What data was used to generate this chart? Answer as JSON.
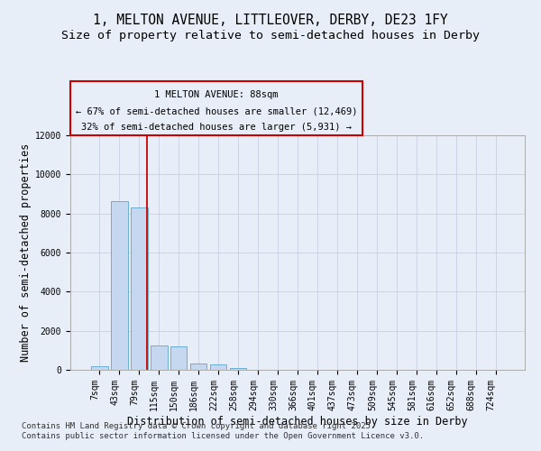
{
  "title_line1": "1, MELTON AVENUE, LITTLEOVER, DERBY, DE23 1FY",
  "title_line2": "Size of property relative to semi-detached houses in Derby",
  "xlabel": "Distribution of semi-detached houses by size in Derby",
  "ylabel": "Number of semi-detached properties",
  "footer_line1": "Contains HM Land Registry data © Crown copyright and database right 2025.",
  "footer_line2": "Contains public sector information licensed under the Open Government Licence v3.0.",
  "annotation_line1": "1 MELTON AVENUE: 88sqm",
  "annotation_line2": "← 67% of semi-detached houses are smaller (12,469)",
  "annotation_line3": "32% of semi-detached houses are larger (5,931) →",
  "categories": [
    "7sqm",
    "43sqm",
    "79sqm",
    "115sqm",
    "150sqm",
    "186sqm",
    "222sqm",
    "258sqm",
    "294sqm",
    "330sqm",
    "366sqm",
    "401sqm",
    "437sqm",
    "473sqm",
    "509sqm",
    "545sqm",
    "581sqm",
    "616sqm",
    "652sqm",
    "688sqm",
    "724sqm"
  ],
  "bar_values": [
    200,
    8650,
    8300,
    1250,
    1200,
    330,
    300,
    100,
    0,
    0,
    0,
    0,
    0,
    0,
    0,
    0,
    0,
    0,
    0,
    0,
    0
  ],
  "bar_color": "#c5d8f0",
  "bar_edge_color": "#6baed6",
  "vline_color": "#cc0000",
  "vline_position": 2.42,
  "annotation_box_color": "#cc0000",
  "ylim": [
    0,
    12000
  ],
  "yticks": [
    0,
    2000,
    4000,
    6000,
    8000,
    10000,
    12000
  ],
  "grid_color": "#c8d0e0",
  "bg_color": "#e8eef8",
  "title_fontsize": 10.5,
  "subtitle_fontsize": 9.5,
  "axis_label_fontsize": 8.5,
  "tick_fontsize": 7,
  "footer_fontsize": 6.5,
  "annotation_fontsize": 7.5
}
